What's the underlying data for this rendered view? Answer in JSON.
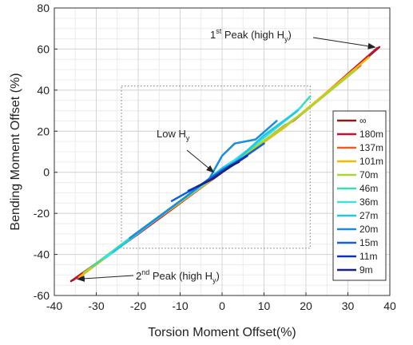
{
  "chart_data": {
    "type": "line",
    "xlabel": "Torsion Moment Offset(%)",
    "ylabel": "Bending Moment Offset (%)",
    "xlim": [
      -40,
      40
    ],
    "ylim": [
      -60,
      80
    ],
    "xticks": [
      -40,
      -30,
      -20,
      -10,
      0,
      10,
      20,
      30,
      40
    ],
    "yticks": [
      -60,
      -40,
      -20,
      0,
      20,
      40,
      60,
      80
    ],
    "grid": true,
    "legend_position": "right",
    "series": [
      {
        "name": "∞",
        "color": "#8b1a1a",
        "x": [
          -36,
          -20,
          0,
          20,
          37.5
        ],
        "y": [
          -53,
          -30,
          0,
          30,
          61
        ]
      },
      {
        "name": "180m",
        "color": "#c8102e",
        "x": [
          -35.5,
          -20,
          0,
          20,
          37
        ],
        "y": [
          -52.5,
          -30,
          0,
          30,
          60.5
        ]
      },
      {
        "name": "137m",
        "color": "#f05a28",
        "x": [
          -34,
          -15,
          0,
          15,
          17,
          33
        ],
        "y": [
          -51,
          -22,
          0,
          23,
          25,
          52
        ]
      },
      {
        "name": "101m",
        "color": "#f5b800",
        "x": [
          -34,
          -15,
          0,
          15,
          35
        ],
        "y": [
          -51,
          -22,
          0,
          22,
          56
        ]
      },
      {
        "name": "70m",
        "color": "#a8d830",
        "x": [
          -33,
          -20,
          -5,
          0,
          5,
          20,
          32
        ],
        "y": [
          -49,
          -29,
          -7,
          1,
          8,
          30,
          50
        ]
      },
      {
        "name": "46m",
        "color": "#33e0b0",
        "x": [
          -31,
          -18,
          -4,
          0,
          4,
          18,
          21
        ],
        "y": [
          -46,
          -26,
          -5,
          1,
          7,
          30,
          37
        ]
      },
      {
        "name": "36m",
        "color": "#40e0e0",
        "x": [
          -28,
          -12,
          -3,
          0,
          3,
          12,
          19
        ],
        "y": [
          -42,
          -17,
          -4,
          2,
          6,
          20,
          32
        ]
      },
      {
        "name": "27m",
        "color": "#1ec8e8",
        "x": [
          -26,
          -10,
          -3,
          0,
          3,
          10,
          18
        ],
        "y": [
          -39,
          -14,
          -3,
          2,
          5,
          18,
          30
        ]
      },
      {
        "name": "20m",
        "color": "#1a8ce0",
        "x": [
          -22,
          -8,
          -3,
          0,
          3,
          8,
          13
        ],
        "y": [
          -32,
          -11,
          -3,
          8,
          14,
          16,
          25
        ]
      },
      {
        "name": "15m",
        "color": "#1560d8",
        "x": [
          -12,
          -5,
          0,
          5,
          10
        ],
        "y": [
          -14,
          -6,
          1,
          7,
          14
        ]
      },
      {
        "name": "11m",
        "color": "#1030c0",
        "x": [
          -8,
          -3,
          0,
          3,
          6
        ],
        "y": [
          -9,
          -4,
          0,
          4,
          8
        ]
      },
      {
        "name": "9m",
        "color": "#1a237e",
        "x": [
          -6,
          -2,
          0,
          2,
          4
        ],
        "y": [
          -7,
          -3,
          0,
          3,
          5
        ]
      }
    ],
    "annotations": {
      "peak1": {
        "sup": "st",
        "text": " Peak (high H",
        "sub": "y",
        "close": ")",
        "prefix": "1"
      },
      "peak2": {
        "sup": "nd",
        "text": " Peak (high H",
        "sub": "y",
        "close": ")",
        "prefix": "2"
      },
      "low": {
        "text": "Low H",
        "sub": "y"
      }
    }
  }
}
